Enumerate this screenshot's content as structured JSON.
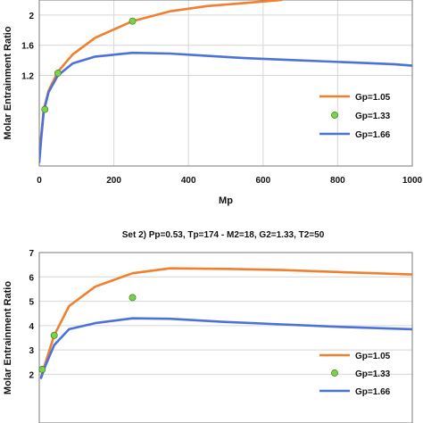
{
  "colors": {
    "gp105": "#f07f2e",
    "gp133": "#7cd14a",
    "gp166": "#4a72d9",
    "grid": "#d6d6d6",
    "axis": "#7a7a7a"
  },
  "chart_data": [
    {
      "type": "line",
      "title": "",
      "xlabel": "Mp",
      "ylabel": "Molar Entrainment Ratio",
      "xlim": [
        0,
        1000
      ],
      "ylim": [
        0,
        2.2
      ],
      "xticks": [
        "0",
        "200",
        "400",
        "600",
        "800",
        "1000"
      ],
      "yticks": [
        "1.2",
        "1.6",
        "2"
      ],
      "grid": true,
      "legend": "right",
      "series": [
        {
          "name": "Gp=1.05",
          "kind": "line",
          "color": "#f07f2e",
          "x": [
            0,
            5,
            12,
            25,
            50,
            90,
            150,
            250,
            350,
            450,
            550,
            650
          ],
          "y": [
            0.15,
            0.4,
            0.75,
            1.0,
            1.25,
            1.48,
            1.7,
            1.92,
            2.05,
            2.12,
            2.16,
            2.2
          ]
        },
        {
          "name": "Gp=1.33",
          "kind": "marker",
          "color": "#7cd14a",
          "x": [
            15,
            50,
            250
          ],
          "y": [
            0.75,
            1.23,
            1.92
          ]
        },
        {
          "name": "Gp=1.66",
          "kind": "line",
          "color": "#4a72d9",
          "x": [
            0,
            5,
            12,
            25,
            50,
            90,
            150,
            250,
            350,
            450,
            550,
            650,
            750,
            850,
            950,
            1000
          ],
          "y": [
            0.05,
            0.35,
            0.72,
            0.98,
            1.2,
            1.36,
            1.45,
            1.5,
            1.49,
            1.46,
            1.43,
            1.41,
            1.39,
            1.37,
            1.35,
            1.33
          ]
        }
      ]
    },
    {
      "type": "line",
      "title": "Set 2) Pp=0.53, Tp=174 - M2=18, G2=1.33, T2=50",
      "xlabel": "",
      "ylabel": "Molar Entrainment Ratio",
      "xlim": [
        0,
        1000
      ],
      "ylim": [
        0,
        7
      ],
      "xticks": [],
      "yticks": [
        "2",
        "3",
        "4",
        "5",
        "6",
        "7"
      ],
      "grid": true,
      "legend": "right",
      "series": [
        {
          "name": "Gp=1.05",
          "kind": "line",
          "color": "#f07f2e",
          "x": [
            5,
            15,
            40,
            80,
            150,
            250,
            350,
            500,
            650,
            800,
            1000
          ],
          "y": [
            1.9,
            2.4,
            3.6,
            4.8,
            5.6,
            6.15,
            6.35,
            6.33,
            6.28,
            6.2,
            6.1
          ]
        },
        {
          "name": "Gp=1.33",
          "kind": "marker",
          "color": "#7cd14a",
          "x": [
            8,
            40,
            250
          ],
          "y": [
            2.2,
            3.6,
            5.15
          ]
        },
        {
          "name": "Gp=1.66",
          "kind": "line",
          "color": "#4a72d9",
          "x": [
            5,
            15,
            40,
            80,
            150,
            250,
            350,
            500,
            650,
            800,
            1000
          ],
          "y": [
            1.85,
            2.3,
            3.2,
            3.85,
            4.1,
            4.3,
            4.28,
            4.15,
            4.05,
            3.95,
            3.85
          ]
        }
      ]
    }
  ]
}
